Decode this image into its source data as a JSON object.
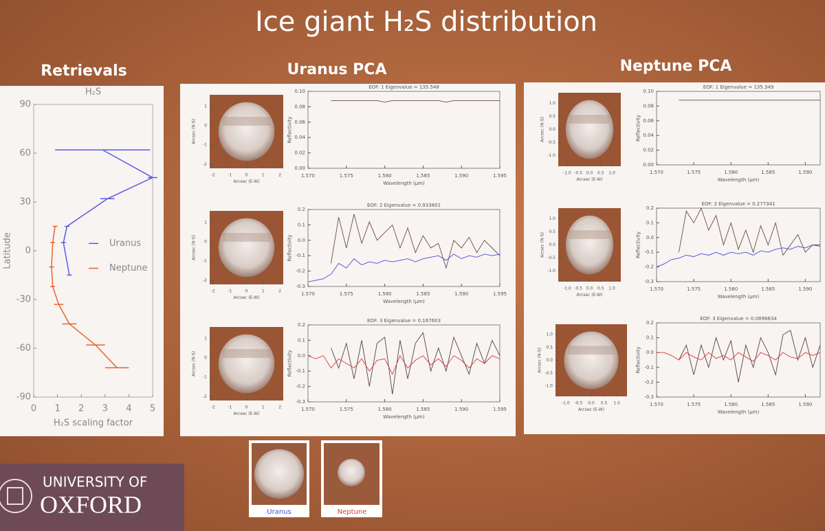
{
  "slide": {
    "title": "Ice giant H₂S distribution",
    "headings": [
      "Retrievals",
      "Uranus PCA",
      "Neptune PCA"
    ],
    "logo": [
      "UNIVERSITY OF",
      "OXFORD"
    ],
    "thumbnails": [
      "Uranus",
      "Neptune"
    ]
  },
  "chart_data": [
    {
      "type": "line",
      "title": "H₂S",
      "xlabel": "H₂S scaling factor",
      "ylabel": "Latitude",
      "xlim": [
        0,
        5
      ],
      "xticks": [
        0,
        1,
        2,
        3,
        4,
        5
      ],
      "ylim": [
        -90,
        90
      ],
      "yticks": [
        -90,
        -60,
        -30,
        0,
        30,
        60,
        90
      ],
      "series": [
        {
          "name": "Uranus",
          "color": "#5a5ae0",
          "x": [
            2.9,
            5.0,
            3.1,
            1.4,
            1.25,
            1.5
          ],
          "values": [
            62,
            45,
            32,
            15,
            5,
            -15
          ],
          "errors": [
            2.0,
            0.2,
            0.3,
            0.1,
            0.1,
            0.1
          ]
        },
        {
          "name": "Neptune",
          "color": "#e8642c",
          "x": [
            0.9,
            0.8,
            0.75,
            0.8,
            1.05,
            1.5,
            2.6,
            3.5
          ],
          "values": [
            15,
            5,
            -10,
            -22,
            -33,
            -45,
            -58,
            -72
          ],
          "errors": [
            0.1,
            0.1,
            0.1,
            0.1,
            0.2,
            0.3,
            0.4,
            0.5
          ]
        }
      ]
    },
    {
      "type": "image",
      "xlabel": "Arcsec (E-W)",
      "ylabel": "Arcsec (N-S)",
      "xlim": [
        -2.2,
        2.2
      ],
      "xticks": [
        -2,
        -1,
        0,
        1,
        2
      ],
      "ylim": [
        -2.2,
        1.6
      ],
      "yticks": [
        -2,
        -1,
        0,
        1
      ]
    },
    {
      "type": "line",
      "title": "EOF: 1 Eigenvalue = 135.548",
      "xlabel": "Wavelength (μm)",
      "ylabel": "Reflectivity",
      "xlim": [
        1.57,
        1.595
      ],
      "xticks": [
        {
          "value": 1.57,
          "label": "1.570"
        },
        1.575,
        {
          "value": 1.58,
          "label": "1.580"
        },
        1.585,
        {
          "value": 1.59,
          "label": "1.590"
        },
        1.595
      ],
      "ylim": [
        0,
        0.1
      ],
      "yticks": [
        {
          "value": 0,
          "label": "0.00"
        },
        0.02,
        0.04,
        0.06,
        0.08,
        {
          "value": 0.1,
          "label": "0.10"
        }
      ],
      "x": [
        1.57,
        1.571,
        1.572,
        1.573,
        1.574,
        1.575,
        1.576,
        1.577,
        1.578,
        1.579,
        1.58,
        1.581,
        1.582,
        1.583,
        1.584,
        1.585,
        1.586,
        1.587,
        1.588,
        1.589,
        1.59,
        1.591,
        1.592,
        1.593,
        1.594,
        1.595
      ],
      "series": [
        {
          "color": "#6e4a44",
          "values": [
            null,
            null,
            null,
            0.088,
            0.088,
            0.088,
            0.088,
            0.088,
            0.088,
            0.088,
            0.086,
            0.088,
            0.088,
            0.088,
            0.088,
            0.088,
            0.088,
            0.088,
            0.086,
            0.088,
            0.088,
            0.088,
            0.088,
            0.088,
            0.088,
            0.088
          ]
        }
      ]
    },
    {
      "type": "image",
      "xlabel": "Arcsec (E-W)",
      "ylabel": "Arcsec (N-S)",
      "xlim": [
        -2.2,
        2.2
      ],
      "xticks": [
        -2,
        -1,
        0,
        1,
        2
      ],
      "ylim": [
        -2.2,
        1.6
      ],
      "yticks": [
        -2,
        -1,
        0,
        1
      ]
    },
    {
      "type": "line",
      "title": "EOF: 2 Eigenvalue = 0.933801",
      "xlabel": "Wavelength (μm)",
      "ylabel": "Reflectivity",
      "xlim": [
        1.57,
        1.595
      ],
      "xticks": [
        {
          "value": 1.57,
          "label": "1.570"
        },
        1.575,
        {
          "value": 1.58,
          "label": "1.580"
        },
        1.585,
        {
          "value": 1.59,
          "label": "1.590"
        },
        1.595
      ],
      "ylim": [
        -0.3,
        0.2
      ],
      "yticks": [
        -0.3,
        -0.2,
        -0.1,
        {
          "value": 0,
          "label": "0.0"
        },
        0.1,
        0.2
      ],
      "x": [
        1.57,
        1.571,
        1.572,
        1.573,
        1.574,
        1.575,
        1.576,
        1.577,
        1.578,
        1.579,
        1.58,
        1.581,
        1.582,
        1.583,
        1.584,
        1.585,
        1.586,
        1.587,
        1.588,
        1.589,
        1.59,
        1.591,
        1.592,
        1.593,
        1.594,
        1.595
      ],
      "series": [
        {
          "color": "#6e4a44",
          "values": [
            null,
            null,
            null,
            -0.15,
            0.15,
            -0.05,
            0.17,
            -0.02,
            0.12,
            0.0,
            0.05,
            0.1,
            -0.05,
            0.08,
            -0.08,
            0.03,
            -0.05,
            -0.02,
            -0.18,
            0.0,
            -0.05,
            0.02,
            -0.08,
            0.0,
            -0.05,
            -0.1
          ]
        },
        {
          "color": "#4b4bd6",
          "values": [
            -0.27,
            -0.26,
            -0.25,
            -0.22,
            -0.15,
            -0.18,
            -0.12,
            -0.16,
            -0.14,
            -0.15,
            -0.13,
            -0.14,
            -0.13,
            -0.12,
            -0.14,
            -0.12,
            -0.11,
            -0.1,
            -0.13,
            -0.09,
            -0.12,
            -0.1,
            -0.11,
            -0.09,
            -0.1,
            -0.09
          ]
        }
      ]
    },
    {
      "type": "image",
      "xlabel": "Arcsec (E-W)",
      "ylabel": "Arcsec (N-S)",
      "xlim": [
        -2.2,
        2.2
      ],
      "xticks": [
        -2,
        -1,
        0,
        1,
        2
      ],
      "ylim": [
        -2.2,
        1.6
      ],
      "yticks": [
        -2,
        -1,
        0,
        1
      ]
    },
    {
      "type": "line",
      "title": "EOF: 3 Eigenvalue = 0.167603",
      "xlabel": "Wavelength (μm)",
      "ylabel": "Reflectivity",
      "xlim": [
        1.57,
        1.595
      ],
      "xticks": [
        {
          "value": 1.57,
          "label": "1.570"
        },
        1.575,
        {
          "value": 1.58,
          "label": "1.580"
        },
        1.585,
        {
          "value": 1.59,
          "label": "1.590"
        },
        1.595
      ],
      "ylim": [
        -0.3,
        0.2
      ],
      "yticks": [
        -0.3,
        -0.2,
        -0.1,
        {
          "value": 0,
          "label": "0.0"
        },
        0.1,
        0.2
      ],
      "x": [
        1.57,
        1.571,
        1.572,
        1.573,
        1.574,
        1.575,
        1.576,
        1.577,
        1.578,
        1.579,
        1.58,
        1.581,
        1.582,
        1.583,
        1.584,
        1.585,
        1.586,
        1.587,
        1.588,
        1.589,
        1.59,
        1.591,
        1.592,
        1.593,
        1.594,
        1.595
      ],
      "series": [
        {
          "color": "#5a4040",
          "values": [
            null,
            null,
            null,
            0.05,
            -0.08,
            0.08,
            -0.15,
            0.1,
            -0.2,
            0.08,
            0.12,
            -0.25,
            0.1,
            -0.15,
            0.08,
            0.15,
            -0.1,
            0.05,
            -0.1,
            0.12,
            0.0,
            -0.12,
            0.08,
            -0.05,
            0.1,
            0.0
          ]
        },
        {
          "color": "#d83a3a",
          "values": [
            0.0,
            -0.02,
            0.0,
            -0.08,
            -0.02,
            -0.05,
            -0.08,
            -0.02,
            -0.1,
            -0.03,
            -0.02,
            -0.12,
            0.0,
            -0.08,
            -0.03,
            0.0,
            -0.06,
            -0.02,
            -0.07,
            0.0,
            -0.03,
            -0.08,
            -0.02,
            -0.05,
            0.0,
            -0.02
          ]
        }
      ]
    },
    {
      "type": "image",
      "xlabel": "Arcsec (E-W)",
      "ylabel": "Arcsec (N-S)",
      "xlim": [
        -1.4,
        1.4
      ],
      "xticks": [
        {
          "value": -1,
          "label": "-1.0"
        },
        -0.5,
        {
          "value": 0,
          "label": "0.0"
        },
        0.5,
        {
          "value": 1,
          "label": "1.0"
        }
      ],
      "ylim": [
        -1.4,
        1.4
      ],
      "yticks": [
        {
          "value": -1,
          "label": "-1.0"
        },
        -0.5,
        {
          "value": 0,
          "label": "0.0"
        },
        0.5,
        {
          "value": 1,
          "label": "1.0"
        }
      ]
    },
    {
      "type": "line",
      "title": "EOF: 1 Eigenvalue = 135.349",
      "xlabel": "Wavelength (μm)",
      "ylabel": "Reflectivity",
      "xlim": [
        1.57,
        1.592
      ],
      "xticks": [
        {
          "value": 1.57,
          "label": "1.570"
        },
        1.575,
        {
          "value": 1.58,
          "label": "1.580"
        },
        1.585,
        {
          "value": 1.59,
          "label": "1.590"
        }
      ],
      "ylim": [
        0,
        0.1
      ],
      "yticks": [
        {
          "value": 0,
          "label": "0.00"
        },
        0.02,
        0.04,
        0.06,
        0.08,
        {
          "value": 0.1,
          "label": "0.10"
        }
      ],
      "x": [
        1.57,
        1.571,
        1.572,
        1.573,
        1.574,
        1.575,
        1.576,
        1.577,
        1.578,
        1.579,
        1.58,
        1.581,
        1.582,
        1.583,
        1.584,
        1.585,
        1.586,
        1.587,
        1.588,
        1.589,
        1.59,
        1.591,
        1.592
      ],
      "series": [
        {
          "color": "#6e4a44",
          "values": [
            null,
            null,
            null,
            0.088,
            0.088,
            0.088,
            0.088,
            0.088,
            0.088,
            0.088,
            0.088,
            0.088,
            0.088,
            0.088,
            0.088,
            0.088,
            0.088,
            0.088,
            0.088,
            0.088,
            0.088,
            0.088,
            0.088
          ]
        }
      ]
    },
    {
      "type": "image",
      "xlabel": "Arcsec (E-W)",
      "ylabel": "Arcsec (N-S)",
      "xlim": [
        -1.4,
        1.4
      ],
      "xticks": [
        {
          "value": -1,
          "label": "-1.0"
        },
        -0.5,
        {
          "value": 0,
          "label": "0.0"
        },
        0.5,
        {
          "value": 1,
          "label": "1.0"
        }
      ],
      "ylim": [
        -1.4,
        1.4
      ],
      "yticks": [
        {
          "value": -1,
          "label": "-1.0"
        },
        -0.5,
        {
          "value": 0,
          "label": "0.0"
        },
        0.5,
        {
          "value": 1,
          "label": "1.0"
        }
      ]
    },
    {
      "type": "line",
      "title": "EOF: 2 Eigenvalue = 0.277341",
      "xlabel": "Wavelength (μm)",
      "ylabel": "Reflectivity",
      "xlim": [
        1.57,
        1.592
      ],
      "xticks": [
        {
          "value": 1.57,
          "label": "1.570"
        },
        1.575,
        {
          "value": 1.58,
          "label": "1.580"
        },
        1.585,
        {
          "value": 1.59,
          "label": "1.590"
        }
      ],
      "ylim": [
        -0.3,
        0.2
      ],
      "yticks": [
        -0.3,
        -0.2,
        -0.1,
        {
          "value": 0,
          "label": "0.0"
        },
        0.1,
        0.2
      ],
      "x": [
        1.57,
        1.571,
        1.572,
        1.573,
        1.574,
        1.575,
        1.576,
        1.577,
        1.578,
        1.579,
        1.58,
        1.581,
        1.582,
        1.583,
        1.584,
        1.585,
        1.586,
        1.587,
        1.588,
        1.589,
        1.59,
        1.591,
        1.592
      ],
      "series": [
        {
          "color": "#6e4a44",
          "values": [
            null,
            null,
            null,
            -0.1,
            0.18,
            0.1,
            0.2,
            0.05,
            0.15,
            -0.05,
            0.1,
            -0.08,
            0.05,
            -0.1,
            0.08,
            -0.05,
            0.1,
            -0.12,
            -0.05,
            0.02,
            -0.1,
            -0.05,
            -0.05
          ]
        },
        {
          "color": "#4b4bd6",
          "values": [
            -0.2,
            -0.18,
            -0.15,
            -0.14,
            -0.12,
            -0.13,
            -0.11,
            -0.12,
            -0.1,
            -0.12,
            -0.1,
            -0.11,
            -0.1,
            -0.12,
            -0.09,
            -0.1,
            -0.08,
            -0.07,
            -0.08,
            -0.06,
            -0.07,
            -0.05,
            -0.06
          ]
        }
      ]
    },
    {
      "type": "image",
      "xlabel": "Arcsec (E-W)",
      "ylabel": "Arcsec (N-S)",
      "xlim": [
        -1.4,
        1.4
      ],
      "xticks": [
        {
          "value": -1,
          "label": "-1.0"
        },
        -0.5,
        {
          "value": 0,
          "label": "0.0"
        },
        0.5,
        {
          "value": 1,
          "label": "1.0"
        }
      ],
      "ylim": [
        -1.4,
        1.4
      ],
      "yticks": [
        {
          "value": -1,
          "label": "-1.0"
        },
        -0.5,
        {
          "value": 0,
          "label": "0.0"
        },
        0.5,
        {
          "value": 1,
          "label": "1.0"
        }
      ]
    },
    {
      "type": "line",
      "title": "EOF: 3 Eigenvalue = 0.0896634",
      "xlabel": "Wavelength (μm)",
      "ylabel": "Reflectivity",
      "xlim": [
        1.57,
        1.592
      ],
      "xticks": [
        {
          "value": 1.57,
          "label": "1.570"
        },
        1.575,
        {
          "value": 1.58,
          "label": "1.580"
        },
        1.585,
        {
          "value": 1.59,
          "label": "1.590"
        }
      ],
      "ylim": [
        -0.3,
        0.2
      ],
      "yticks": [
        -0.3,
        -0.2,
        -0.1,
        {
          "value": 0,
          "label": "0.0"
        },
        0.1,
        0.2
      ],
      "x": [
        1.57,
        1.571,
        1.572,
        1.573,
        1.574,
        1.575,
        1.576,
        1.577,
        1.578,
        1.579,
        1.58,
        1.581,
        1.582,
        1.583,
        1.584,
        1.585,
        1.586,
        1.587,
        1.588,
        1.589,
        1.59,
        1.591,
        1.592
      ],
      "series": [
        {
          "color": "#5a4040",
          "values": [
            null,
            null,
            null,
            -0.05,
            0.05,
            -0.15,
            0.05,
            -0.1,
            0.1,
            -0.05,
            0.08,
            -0.2,
            0.05,
            -0.1,
            0.1,
            0.0,
            -0.15,
            0.12,
            0.15,
            -0.05,
            0.1,
            -0.1,
            0.05
          ]
        },
        {
          "color": "#d83a3a",
          "values": [
            0.0,
            0.0,
            -0.02,
            -0.05,
            0.0,
            -0.03,
            -0.05,
            0.0,
            -0.04,
            -0.02,
            -0.05,
            0.0,
            -0.03,
            -0.06,
            0.0,
            -0.02,
            -0.05,
            0.0,
            -0.03,
            -0.04,
            0.0,
            -0.02,
            0.0
          ]
        }
      ]
    }
  ]
}
